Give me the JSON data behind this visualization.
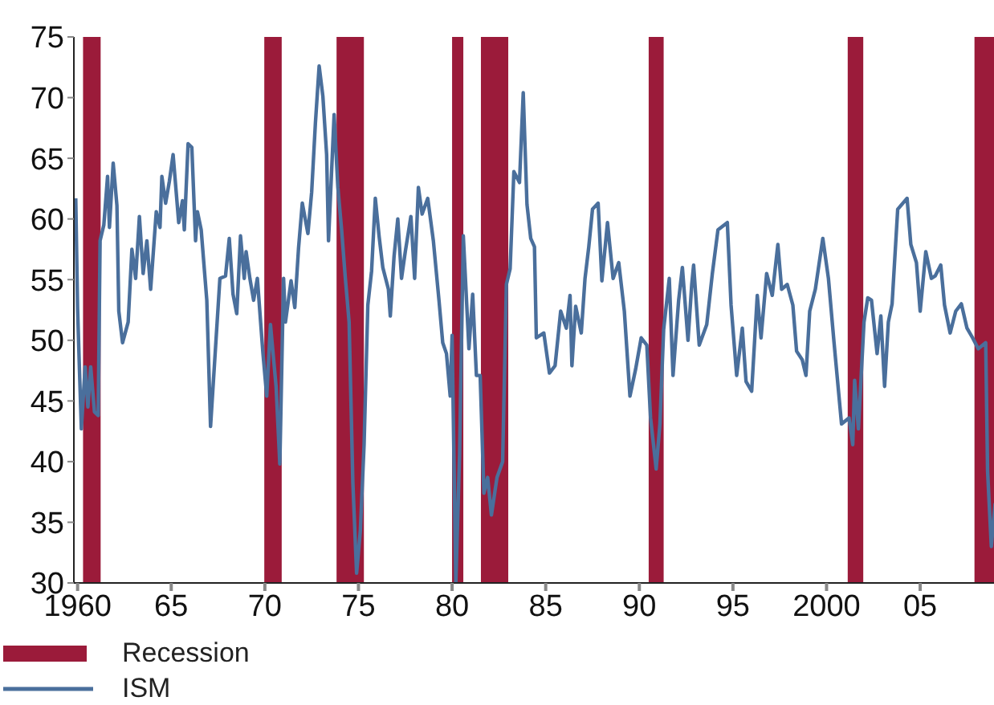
{
  "chart_data": {
    "type": "line",
    "xlim": [
      1959.8,
      2009.2
    ],
    "xticks": [
      {
        "value": 1960,
        "label": "1960"
      },
      {
        "value": 1965,
        "label": "65"
      },
      {
        "value": 1970,
        "label": "70"
      },
      {
        "value": 1975,
        "label": "75"
      },
      {
        "value": 1980,
        "label": "80"
      },
      {
        "value": 1985,
        "label": "85"
      },
      {
        "value": 1990,
        "label": "90"
      },
      {
        "value": 1995,
        "label": "95"
      },
      {
        "value": 2000,
        "label": "2000"
      },
      {
        "value": 2005,
        "label": "05"
      }
    ],
    "ylim": [
      30,
      75
    ],
    "yticks": [
      30,
      35,
      40,
      45,
      50,
      55,
      60,
      65,
      70,
      75
    ],
    "grid": false,
    "legend": "bottom left",
    "bands": [
      {
        "axis": "x",
        "from": 1960.29,
        "to": 1961.23,
        "label": "Recession",
        "color": "#9b1b3a"
      },
      {
        "axis": "x",
        "from": 1969.97,
        "to": 1970.9,
        "color": "#9b1b3a"
      },
      {
        "axis": "x",
        "from": 1973.83,
        "to": 1975.29,
        "color": "#9b1b3a"
      },
      {
        "axis": "x",
        "from": 1980.0,
        "to": 1980.6,
        "color": "#9b1b3a"
      },
      {
        "axis": "x",
        "from": 1981.54,
        "to": 1983.0,
        "color": "#9b1b3a"
      },
      {
        "axis": "x",
        "from": 1990.5,
        "to": 1991.3,
        "color": "#9b1b3a"
      },
      {
        "axis": "x",
        "from": 2001.13,
        "to": 2001.96,
        "color": "#9b1b3a"
      },
      {
        "axis": "x",
        "from": 2007.9,
        "to": 2009.2,
        "color": "#9b1b3a"
      }
    ],
    "series": [
      {
        "name": "ISM",
        "color": "#4a6f9c",
        "x": [
          1959.9,
          1960.0,
          1960.1,
          1960.2,
          1960.4,
          1960.55,
          1960.7,
          1960.9,
          1961.1,
          1961.2,
          1961.4,
          1961.6,
          1961.7,
          1961.9,
          1962.1,
          1962.2,
          1962.4,
          1962.7,
          1962.9,
          1963.1,
          1963.3,
          1963.5,
          1963.7,
          1963.9,
          1964.2,
          1964.4,
          1964.5,
          1964.7,
          1964.9,
          1965.1,
          1965.4,
          1965.6,
          1965.7,
          1965.9,
          1966.1,
          1966.3,
          1966.4,
          1966.6,
          1966.9,
          1967.1,
          1967.6,
          1967.9,
          1968.1,
          1968.3,
          1968.5,
          1968.7,
          1968.9,
          1969.0,
          1969.2,
          1969.4,
          1969.6,
          1969.9,
          1970.1,
          1970.3,
          1970.6,
          1970.8,
          1971.0,
          1971.1,
          1971.4,
          1971.6,
          1971.8,
          1972.0,
          1972.3,
          1972.5,
          1972.7,
          1972.9,
          1973.1,
          1973.3,
          1973.4,
          1973.7,
          1973.9,
          1974.1,
          1974.3,
          1974.5,
          1974.7,
          1974.9,
          1975.1,
          1975.3,
          1975.5,
          1975.7,
          1975.9,
          1976.1,
          1976.3,
          1976.6,
          1976.7,
          1976.9,
          1977.1,
          1977.3,
          1977.5,
          1977.8,
          1978.0,
          1978.2,
          1978.4,
          1978.7,
          1979.0,
          1979.3,
          1979.5,
          1979.7,
          1979.9,
          1980.0,
          1980.2,
          1980.4,
          1980.6,
          1980.9,
          1981.1,
          1981.3,
          1981.5,
          1981.7,
          1981.9,
          1982.1,
          1982.4,
          1982.7,
          1982.9,
          1983.1,
          1983.3,
          1983.6,
          1983.8,
          1984.0,
          1984.2,
          1984.4,
          1984.5,
          1984.9,
          1985.2,
          1985.5,
          1985.8,
          1986.1,
          1986.3,
          1986.4,
          1986.6,
          1986.9,
          1987.1,
          1987.3,
          1987.5,
          1987.8,
          1988.0,
          1988.3,
          1988.6,
          1988.9,
          1989.2,
          1989.5,
          1989.8,
          1990.1,
          1990.4,
          1990.6,
          1990.9,
          1991.1,
          1991.3,
          1991.6,
          1991.8,
          1992.1,
          1992.3,
          1992.6,
          1992.8,
          1992.9,
          1993.2,
          1993.6,
          1993.9,
          1994.2,
          1994.7,
          1994.9,
          1995.2,
          1995.5,
          1995.7,
          1996.0,
          1996.3,
          1996.5,
          1996.8,
          1997.1,
          1997.4,
          1997.6,
          1997.9,
          1998.2,
          1998.4,
          1998.7,
          1998.9,
          1999.1,
          1999.4,
          1999.8,
          2000.1,
          2000.4,
          2000.8,
          2001.2,
          2001.4,
          2001.5,
          2001.7,
          2002.0,
          2002.2,
          2002.4,
          2002.7,
          2002.9,
          2003.1,
          2003.3,
          2003.5,
          2003.8,
          2004.3,
          2004.5,
          2004.8,
          2005.0,
          2005.3,
          2005.6,
          2005.8,
          2006.1,
          2006.3,
          2006.6,
          2006.9,
          2007.2,
          2007.5,
          2007.8,
          2008.1,
          2008.5,
          2008.6,
          2008.8,
          2009.0,
          2009.2
        ],
        "values": [
          61.7,
          52.6,
          47.5,
          42.7,
          47.8,
          44.5,
          47.8,
          44.1,
          43.8,
          58.2,
          59.5,
          63.5,
          59.3,
          64.6,
          61.1,
          52.4,
          49.8,
          51.5,
          57.5,
          55.1,
          60.2,
          55.5,
          58.2,
          54.2,
          60.6,
          59.3,
          63.5,
          61.3,
          63.1,
          65.3,
          59.7,
          61.5,
          59.1,
          66.2,
          65.9,
          58.2,
          60.6,
          59.1,
          53.3,
          42.9,
          55.1,
          55.3,
          58.4,
          53.8,
          52.2,
          58.6,
          55.1,
          57.3,
          55.1,
          53.3,
          55.1,
          48.9,
          45.4,
          51.3,
          46.2,
          39.8,
          55.1,
          51.5,
          54.9,
          52.7,
          57.6,
          61.3,
          58.8,
          62.2,
          67.9,
          72.6,
          70.1,
          65.3,
          58.2,
          68.6,
          62.6,
          59.1,
          55.1,
          51.5,
          38.3,
          30.8,
          34.3,
          41.4,
          52.9,
          55.7,
          61.7,
          58.6,
          56.0,
          54.2,
          52.0,
          56.9,
          60.0,
          55.1,
          57.3,
          60.2,
          55.1,
          62.6,
          60.4,
          61.7,
          58.2,
          53.3,
          49.8,
          48.9,
          45.4,
          50.4,
          30.0,
          40.6,
          58.6,
          49.3,
          53.8,
          47.1,
          47.1,
          37.4,
          38.7,
          35.6,
          38.7,
          40.0,
          54.6,
          55.9,
          63.9,
          63.0,
          70.4,
          61.2,
          58.4,
          57.7,
          50.2,
          50.6,
          47.3,
          47.9,
          52.4,
          51.0,
          53.7,
          47.9,
          52.8,
          50.6,
          55.1,
          57.7,
          60.8,
          61.3,
          54.9,
          59.7,
          55.1,
          56.4,
          52.4,
          45.4,
          47.6,
          50.2,
          49.6,
          43.6,
          39.4,
          43.1,
          50.9,
          55.1,
          47.1,
          53.3,
          56.0,
          50.0,
          54.6,
          56.2,
          49.6,
          51.3,
          55.5,
          59.1,
          59.7,
          52.9,
          47.1,
          51.0,
          46.6,
          45.8,
          53.7,
          50.2,
          55.5,
          53.7,
          57.9,
          54.2,
          54.6,
          52.9,
          49.1,
          48.4,
          47.1,
          52.4,
          54.2,
          58.4,
          55.1,
          49.8,
          43.1,
          43.6,
          41.4,
          46.7,
          42.7,
          51.5,
          53.5,
          53.3,
          48.9,
          52.0,
          46.2,
          51.5,
          53.0,
          60.8,
          61.7,
          57.9,
          56.4,
          52.4,
          57.3,
          55.1,
          55.3,
          56.2,
          52.9,
          50.6,
          52.4,
          53.0,
          51.0,
          50.2,
          49.3,
          49.8,
          39.2,
          33.0,
          36.5,
          36.7
        ]
      }
    ]
  }
}
